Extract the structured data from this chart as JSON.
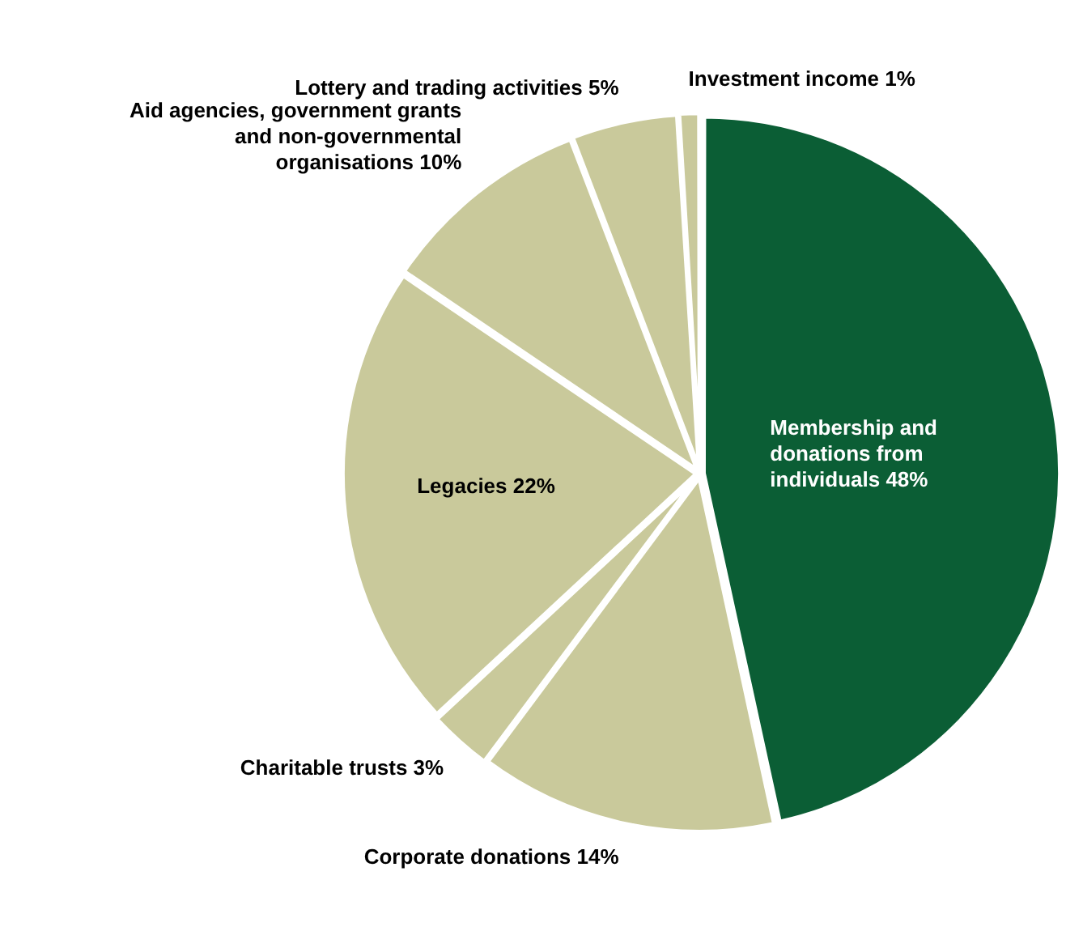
{
  "chart_data": {
    "type": "pie",
    "categories": [
      "Membership and donations from individuals",
      "Corporate donations",
      "Charitable trusts",
      "Legacies",
      "Aid agencies, government grants and non-governmental organisations",
      "Lottery and trading activities",
      "Investment income"
    ],
    "values": [
      48,
      14,
      3,
      22,
      10,
      5,
      1
    ],
    "value_labels": [
      "48%",
      "14%",
      "3%",
      "22%",
      "10%",
      "5%",
      "1%"
    ],
    "colors": [
      "#0b5e35",
      "#c9c99b",
      "#c9c99b",
      "#c9c99b",
      "#c9c99b",
      "#c9c99b",
      "#c9c99b"
    ],
    "legend": false
  }
}
